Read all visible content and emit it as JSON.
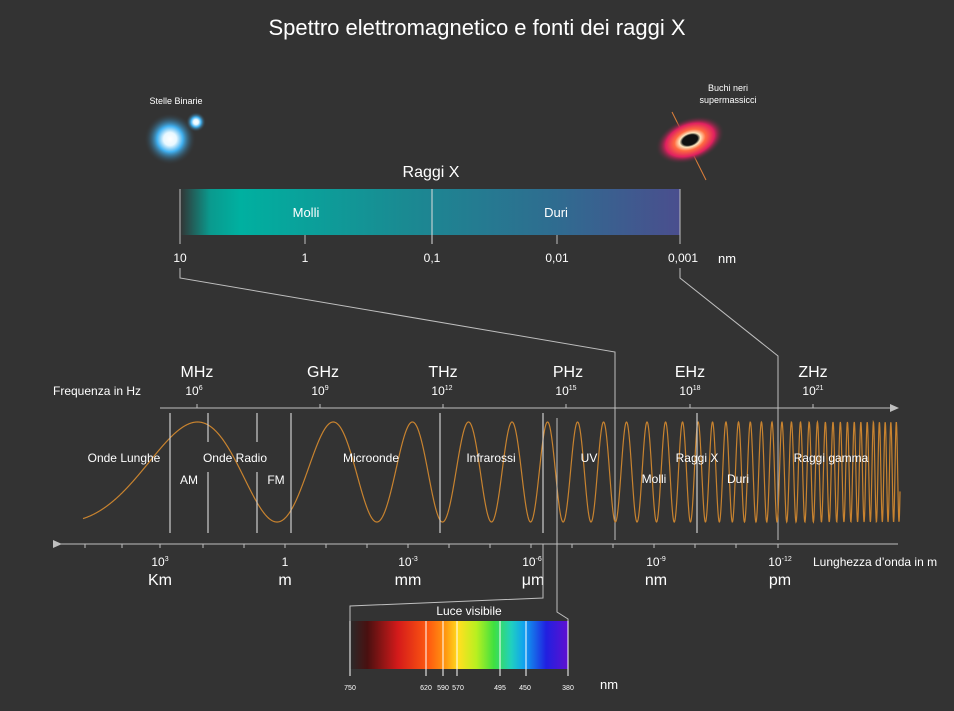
{
  "title": "Spettro elettromagnetico e fonti dei raggi X",
  "sources": {
    "binary_stars": "Stelle Binarie",
    "black_holes_line1": "Buchi neri",
    "black_holes_line2": "supermassicci"
  },
  "xray": {
    "title": "Raggi X",
    "soft": "Molli",
    "hard": "Duri",
    "ticks": [
      "10",
      "1",
      "0,1",
      "0,01",
      "0,001"
    ],
    "unit": "nm"
  },
  "frequency": {
    "axis_label": "Frequenza in Hz",
    "units": [
      {
        "name": "MHz",
        "base": "10",
        "exp": "6"
      },
      {
        "name": "GHz",
        "base": "10",
        "exp": "9"
      },
      {
        "name": "THz",
        "base": "10",
        "exp": "12"
      },
      {
        "name": "PHz",
        "base": "10",
        "exp": "15"
      },
      {
        "name": "EHz",
        "base": "10",
        "exp": "18"
      },
      {
        "name": "ZHz",
        "base": "10",
        "exp": "21"
      }
    ]
  },
  "bands": {
    "long_waves": "Onde Lunghe",
    "am": "AM",
    "radio": "Onde Radio",
    "fm": "FM",
    "micro": "Microonde",
    "infra": "Infrarossi",
    "uv": "UV",
    "soft": "Molli",
    "xray": "Raggi X",
    "hard": "Duri",
    "gamma": "Raggi gamma"
  },
  "wavelength": {
    "axis_label": "Lunghezza d’onda in m",
    "ticks": [
      {
        "base": "10",
        "exp": "3",
        "unit": "Km"
      },
      {
        "base": "1",
        "exp": "",
        "unit": "m"
      },
      {
        "base": "10",
        "exp": "-3",
        "unit": "mm"
      },
      {
        "base": "10",
        "exp": "-6",
        "unit": "μm"
      },
      {
        "base": "10",
        "exp": "-9",
        "unit": "nm"
      },
      {
        "base": "10",
        "exp": "-12",
        "unit": "pm"
      }
    ]
  },
  "visible": {
    "title": "Luce visibile",
    "ticks": [
      "750",
      "620",
      "590",
      "570",
      "495",
      "450",
      "380"
    ],
    "unit": "nm"
  },
  "colors": {
    "background": "#333333",
    "wave": "#c8832f",
    "line": "#bfbfbf",
    "xray_soft": "#00b0a0",
    "xray_hard": "#4a5a9a"
  }
}
